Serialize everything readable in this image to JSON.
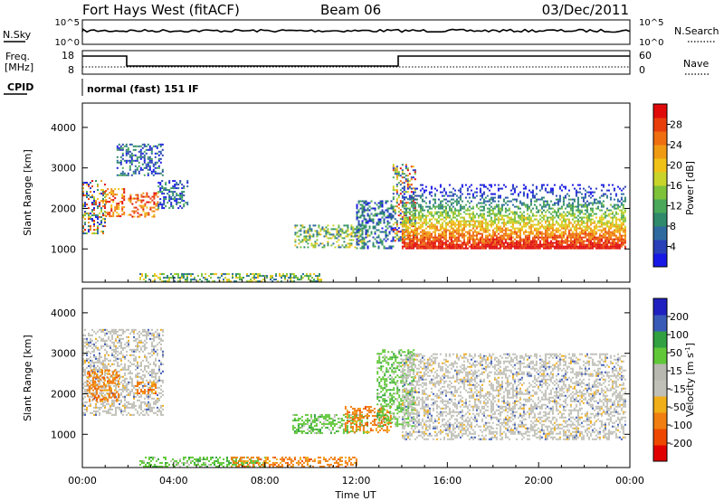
{
  "header": {
    "station": "Fort Hays West (fitACF)",
    "beam": "Beam 06",
    "date": "03/Dec/2011"
  },
  "status_panels": {
    "nsky_label": "N.Sky",
    "nsky_ticks": [
      "10^5",
      "10^0"
    ],
    "nsearch_label": "N.Search",
    "nsearch_ticks": [
      "10^5",
      "10^0"
    ],
    "freq_label": "Freq.",
    "freq_unit": "[MHz]",
    "freq_ticks": [
      "18",
      "8"
    ],
    "nave_label": "Nave",
    "nave_ticks": [
      "60",
      "0"
    ],
    "cpid_label": "CPID",
    "cpid_text": "normal (fast) 151 IF"
  },
  "chart_data": [
    {
      "type": "heatmap",
      "name": "power",
      "ylabel": "Slant Range [km]",
      "ylim": [
        180,
        4600
      ],
      "yticks": [
        1000,
        2000,
        3000,
        4000
      ],
      "xlim_hours": [
        0,
        24
      ],
      "colorbar": {
        "label": "Power [dB]",
        "range": [
          0,
          32
        ],
        "ticks": [
          "4",
          "8",
          "12",
          "16",
          "20",
          "24",
          "28"
        ],
        "colors": [
          "#1818e6",
          "#2a40b8",
          "#2e6aa0",
          "#2e8a6a",
          "#4aa85a",
          "#7ec23a",
          "#c8d42a",
          "#f0c218",
          "#f09a14",
          "#ee6e10",
          "#e83e0c",
          "#e00a0a"
        ]
      },
      "regions": [
        {
          "t": [
            0.0,
            1.0
          ],
          "r": [
            1400,
            2700
          ],
          "level": "mixed"
        },
        {
          "t": [
            1.0,
            1.8
          ],
          "r": [
            1800,
            2500
          ],
          "level": "high"
        },
        {
          "t": [
            1.5,
            3.5
          ],
          "r": [
            2800,
            3600
          ],
          "level": "low"
        },
        {
          "t": [
            2.0,
            3.3
          ],
          "r": [
            1800,
            2400
          ],
          "level": "high"
        },
        {
          "t": [
            3.3,
            4.6
          ],
          "r": [
            2000,
            2700
          ],
          "level": "low"
        },
        {
          "t": [
            2.5,
            10.5
          ],
          "r": [
            200,
            400
          ],
          "level": "mid"
        },
        {
          "t": [
            9.3,
            12.5
          ],
          "r": [
            1050,
            1600
          ],
          "level": "mid"
        },
        {
          "t": [
            12.0,
            13.6
          ],
          "r": [
            1000,
            2200
          ],
          "level": "low"
        },
        {
          "t": [
            13.6,
            14.6
          ],
          "r": [
            1200,
            3100
          ],
          "level": "mixed"
        },
        {
          "t": [
            14.0,
            23.8
          ],
          "r": [
            1000,
            2600
          ],
          "level": "band"
        }
      ]
    },
    {
      "type": "heatmap",
      "name": "velocity",
      "ylabel": "Slant Range [km]",
      "xlabel": "Time UT",
      "ylim": [
        180,
        4600
      ],
      "yticks": [
        1000,
        2000,
        3000,
        4000
      ],
      "xticks": [
        "00:00",
        "04:00",
        "08:00",
        "12:00",
        "16:00",
        "20:00",
        "00:00"
      ],
      "xlim_hours": [
        0,
        24
      ],
      "colorbar": {
        "label": "Velocity [m s-1]",
        "unit_main": "Velocity [m s",
        "unit_exp": "-1",
        "unit_close": "]",
        "range": [
          -250,
          250
        ],
        "ticks": [
          "200",
          "100",
          "50",
          "15",
          "-15",
          "-50",
          "-100",
          "-200"
        ],
        "colors": [
          "#e00000",
          "#ee4800",
          "#f07e10",
          "#f0ae18",
          "#c0c0b8",
          "#b8b8b0",
          "#60c838",
          "#30a040",
          "#3a5ab8",
          "#2020c0"
        ]
      },
      "regions": [
        {
          "t": [
            0.0,
            3.5
          ],
          "r": [
            1500,
            3600
          ],
          "level": "gray"
        },
        {
          "t": [
            0.2,
            1.6
          ],
          "r": [
            1800,
            2600
          ],
          "level": "orange"
        },
        {
          "t": [
            2.3,
            3.2
          ],
          "r": [
            2000,
            2300
          ],
          "level": "orange"
        },
        {
          "t": [
            2.5,
            8.0
          ],
          "r": [
            200,
            450
          ],
          "level": "green"
        },
        {
          "t": [
            6.5,
            12.0
          ],
          "r": [
            200,
            450
          ],
          "level": "orange"
        },
        {
          "t": [
            9.2,
            12.5
          ],
          "r": [
            1050,
            1500
          ],
          "level": "green"
        },
        {
          "t": [
            11.5,
            13.5
          ],
          "r": [
            1050,
            1700
          ],
          "level": "orange"
        },
        {
          "t": [
            12.9,
            14.5
          ],
          "r": [
            1200,
            3100
          ],
          "level": "green"
        },
        {
          "t": [
            14.0,
            23.8
          ],
          "r": [
            900,
            3000
          ],
          "level": "gray"
        }
      ]
    }
  ]
}
